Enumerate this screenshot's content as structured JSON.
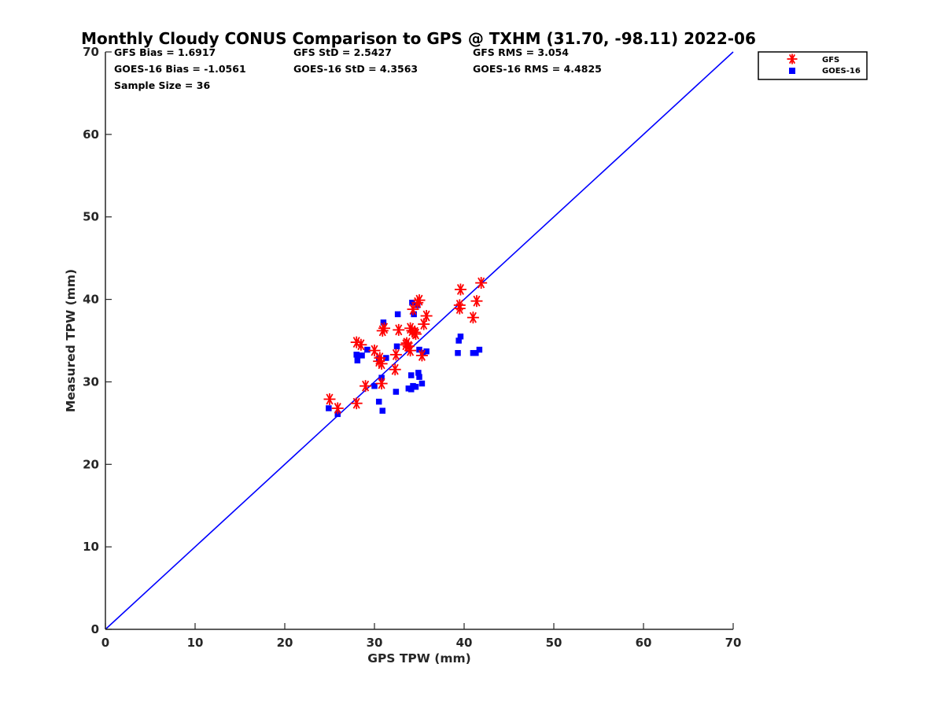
{
  "colors": {
    "gfs": "#ff0000",
    "goes": "#0000ff",
    "line": "#0000ff",
    "axis": "#262626"
  },
  "chart_data": {
    "type": "scatter",
    "title": "Monthly Cloudy CONUS Comparison to GPS @ TXHM (31.70, -98.11) 2022-06",
    "xlabel": "GPS TPW (mm)",
    "ylabel": "Measured TPW (mm)",
    "xlim": [
      0,
      70
    ],
    "ylim": [
      0,
      70
    ],
    "xticks": [
      0,
      10,
      20,
      30,
      40,
      50,
      60,
      70
    ],
    "yticks": [
      0,
      10,
      20,
      30,
      40,
      50,
      60,
      70
    ],
    "grid": false,
    "legend_position": "top-right",
    "stats": {
      "gfs_bias": "GFS Bias = 1.6917",
      "gfs_std": "GFS StD = 2.5427",
      "gfs_rms": "GFS RMS = 3.054",
      "goes_bias": "GOES-16 Bias = -1.0561",
      "goes_std": "GOES-16 StD = 4.3563",
      "goes_rms": "GOES-16 RMS = 4.4825",
      "sample_size": "Sample Size = 36"
    },
    "reference_line": {
      "x": [
        0,
        70
      ],
      "y": [
        0,
        70
      ]
    },
    "series": [
      {
        "name": "GFS",
        "marker": "asterisk",
        "points": [
          [
            25.0,
            27.9
          ],
          [
            25.9,
            26.8
          ],
          [
            28.0,
            27.4
          ],
          [
            28.0,
            34.8
          ],
          [
            28.5,
            34.5
          ],
          [
            29.0,
            29.5
          ],
          [
            30.0,
            33.8
          ],
          [
            30.5,
            32.5
          ],
          [
            30.8,
            29.8
          ],
          [
            30.8,
            32.2
          ],
          [
            30.9,
            36.2
          ],
          [
            31.1,
            36.5
          ],
          [
            32.3,
            31.5
          ],
          [
            32.4,
            33.3
          ],
          [
            32.7,
            36.3
          ],
          [
            33.5,
            34.5
          ],
          [
            33.8,
            34.3
          ],
          [
            34.0,
            36.5
          ],
          [
            34.0,
            33.8
          ],
          [
            34.2,
            36.2
          ],
          [
            34.3,
            38.8
          ],
          [
            34.5,
            36.0
          ],
          [
            34.8,
            39.6
          ],
          [
            35.0,
            39.9
          ],
          [
            35.3,
            33.2
          ],
          [
            35.5,
            37.0
          ],
          [
            35.8,
            38.0
          ],
          [
            39.5,
            39.3
          ],
          [
            39.5,
            38.9
          ],
          [
            39.6,
            41.2
          ],
          [
            41.0,
            37.8
          ],
          [
            41.4,
            39.8
          ],
          [
            41.9,
            42.0
          ],
          [
            34.6,
            35.8
          ],
          [
            33.6,
            34.7
          ],
          [
            30.6,
            32.9
          ]
        ]
      },
      {
        "name": "GOES-16",
        "marker": "square",
        "points": [
          [
            24.9,
            26.8
          ],
          [
            25.9,
            26.1
          ],
          [
            28.0,
            33.3
          ],
          [
            28.1,
            32.6
          ],
          [
            28.6,
            33.2
          ],
          [
            29.2,
            33.9
          ],
          [
            30.0,
            29.5
          ],
          [
            30.5,
            27.6
          ],
          [
            30.5,
            32.8
          ],
          [
            30.9,
            26.5
          ],
          [
            30.8,
            30.5
          ],
          [
            31.0,
            37.2
          ],
          [
            31.3,
            32.9
          ],
          [
            32.4,
            28.8
          ],
          [
            32.5,
            34.3
          ],
          [
            32.6,
            38.2
          ],
          [
            33.8,
            29.2
          ],
          [
            34.1,
            29.1
          ],
          [
            34.1,
            30.8
          ],
          [
            34.3,
            29.5
          ],
          [
            34.4,
            38.2
          ],
          [
            34.2,
            39.6
          ],
          [
            34.6,
            29.4
          ],
          [
            34.8,
            39.3
          ],
          [
            34.9,
            31.1
          ],
          [
            35.0,
            30.6
          ],
          [
            35.0,
            33.9
          ],
          [
            35.3,
            29.8
          ],
          [
            35.4,
            33.5
          ],
          [
            35.8,
            33.7
          ],
          [
            39.3,
            33.5
          ],
          [
            39.4,
            35.0
          ],
          [
            39.6,
            35.5
          ],
          [
            41.0,
            33.5
          ],
          [
            41.3,
            33.5
          ],
          [
            41.7,
            33.9
          ]
        ]
      }
    ]
  }
}
